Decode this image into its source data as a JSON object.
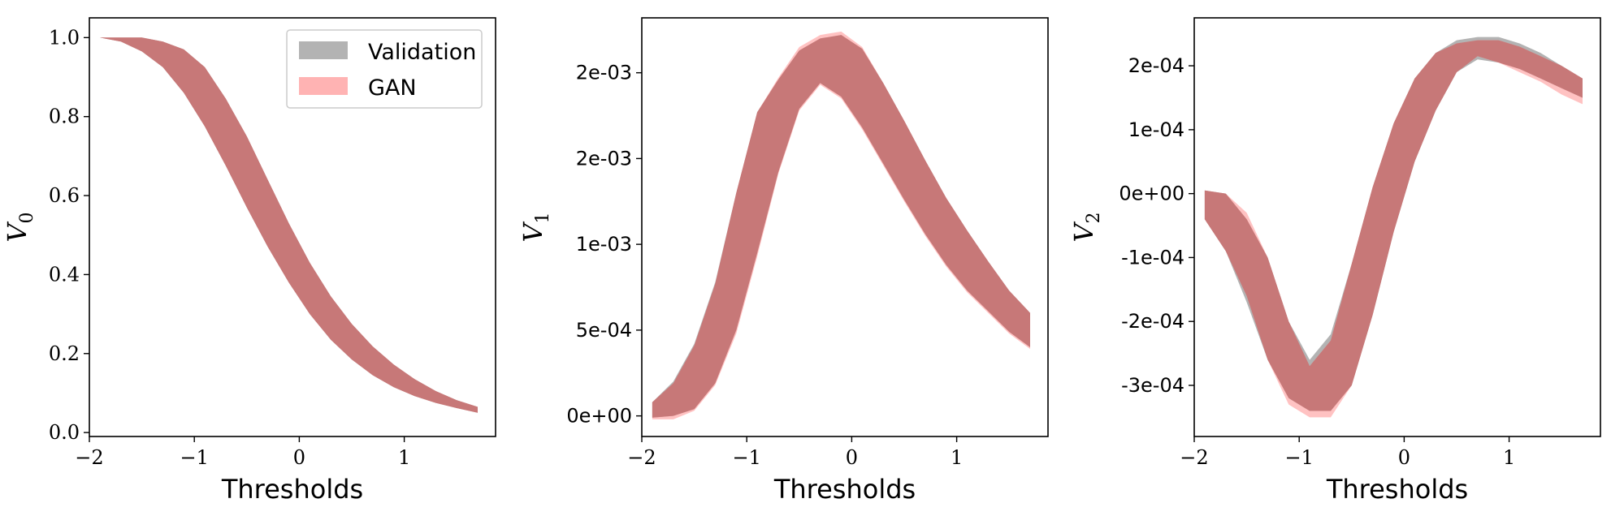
{
  "legend": {
    "entries": [
      {
        "label": "Validation",
        "color": "#8c8c8c"
      },
      {
        "label": "GAN",
        "color": "#ff8080"
      }
    ]
  },
  "colors": {
    "validation_fill": "#999999",
    "gan_fill": "#ff9999",
    "overlap_fill": "#c77878"
  },
  "chart_data": [
    {
      "type": "area",
      "xlabel": "Thresholds",
      "ylabel": "V",
      "ylabel_sub": "0",
      "xlim": [
        -2.0,
        1.87
      ],
      "ylim": [
        -0.01,
        1.05
      ],
      "xticks": [
        -2,
        -1,
        0,
        1
      ],
      "xtick_labels": [
        "−2",
        "−1",
        "0",
        "1"
      ],
      "yticks": [
        0.0,
        0.2,
        0.4,
        0.6,
        0.8,
        1.0
      ],
      "ytick_labels": [
        "0.0",
        "0.2",
        "0.4",
        "0.6",
        "0.8",
        "1.0"
      ],
      "legend_position": "upper right",
      "x": [
        -1.9,
        -1.7,
        -1.5,
        -1.3,
        -1.1,
        -0.9,
        -0.7,
        -0.5,
        -0.3,
        -0.1,
        0.1,
        0.3,
        0.5,
        0.7,
        0.9,
        1.1,
        1.3,
        1.5,
        1.7
      ],
      "series": [
        {
          "name": "Validation",
          "lower": [
            1.0,
            0.99,
            0.965,
            0.925,
            0.86,
            0.775,
            0.675,
            0.57,
            0.47,
            0.38,
            0.3,
            0.235,
            0.185,
            0.145,
            0.115,
            0.092,
            0.075,
            0.062,
            0.05
          ],
          "upper": [
            1.0,
            1.0,
            1.0,
            0.99,
            0.97,
            0.925,
            0.845,
            0.75,
            0.64,
            0.53,
            0.43,
            0.345,
            0.275,
            0.218,
            0.172,
            0.135,
            0.105,
            0.082,
            0.065
          ]
        },
        {
          "name": "GAN",
          "lower": [
            1.0,
            0.99,
            0.965,
            0.925,
            0.86,
            0.775,
            0.675,
            0.57,
            0.47,
            0.38,
            0.3,
            0.235,
            0.185,
            0.145,
            0.115,
            0.092,
            0.075,
            0.062,
            0.05
          ],
          "upper": [
            1.0,
            1.0,
            1.0,
            0.99,
            0.97,
            0.925,
            0.845,
            0.75,
            0.64,
            0.53,
            0.43,
            0.345,
            0.275,
            0.218,
            0.172,
            0.135,
            0.105,
            0.082,
            0.065
          ]
        }
      ]
    },
    {
      "type": "area",
      "xlabel": "Thresholds",
      "ylabel": "V",
      "ylabel_sub": "1",
      "xlim": [
        -2.0,
        1.87
      ],
      "ylim": [
        -0.00012,
        0.00232
      ],
      "xticks": [
        -2,
        -1,
        0,
        1
      ],
      "xtick_labels": [
        "−2",
        "−1",
        "0",
        "1"
      ],
      "yticks": [
        0.0,
        0.0005,
        0.001,
        0.0015,
        0.002
      ],
      "ytick_labels": [
        "0e+00",
        "5e-04",
        "1e-03",
        "2e-03",
        "2e-03"
      ],
      "x": [
        -1.9,
        -1.7,
        -1.5,
        -1.3,
        -1.1,
        -0.9,
        -0.7,
        -0.5,
        -0.3,
        -0.1,
        0.1,
        0.3,
        0.5,
        0.7,
        0.9,
        1.1,
        1.3,
        1.5,
        1.7
      ],
      "series": [
        {
          "name": "Validation",
          "lower": [
            -1e-05,
            0.0,
            4e-05,
            0.00019,
            0.0005,
            0.00095,
            0.00142,
            0.00179,
            0.00194,
            0.00186,
            0.00168,
            0.00147,
            0.00126,
            0.00106,
            0.00088,
            0.00073,
            0.00061,
            0.00049,
            0.0004
          ],
          "upper": [
            8e-05,
            0.0002,
            0.00042,
            0.00078,
            0.0013,
            0.00177,
            0.00196,
            0.00213,
            0.0022,
            0.00222,
            0.00214,
            0.00194,
            0.00172,
            0.00149,
            0.00127,
            0.00108,
            0.0009,
            0.00073,
            0.0006
          ]
        },
        {
          "name": "GAN",
          "lower": [
            -2e-05,
            -2e-05,
            3e-05,
            0.00018,
            0.00048,
            0.00093,
            0.00141,
            0.00178,
            0.00193,
            0.00185,
            0.00167,
            0.00146,
            0.00125,
            0.00105,
            0.00087,
            0.00072,
            0.0006,
            0.00048,
            0.00039
          ],
          "upper": [
            8e-05,
            0.00019,
            0.00041,
            0.00077,
            0.0013,
            0.00177,
            0.00197,
            0.00215,
            0.00222,
            0.00224,
            0.00215,
            0.00194,
            0.00172,
            0.00149,
            0.00127,
            0.00108,
            0.0009,
            0.00073,
            0.0006
          ]
        }
      ]
    },
    {
      "type": "area",
      "xlabel": "Thresholds",
      "ylabel": "V",
      "ylabel_sub": "2",
      "xlim": [
        -2.0,
        1.87
      ],
      "ylim": [
        -0.00038,
        0.000275
      ],
      "xticks": [
        -2,
        -1,
        0,
        1
      ],
      "xtick_labels": [
        "−2",
        "−1",
        "0",
        "1"
      ],
      "yticks": [
        -0.0003,
        -0.0002,
        -0.0001,
        0.0,
        0.0001,
        0.0002
      ],
      "ytick_labels": [
        "-3e-04",
        "-2e-04",
        "-1e-04",
        "0e+00",
        "1e-04",
        "2e-04"
      ],
      "x": [
        -1.9,
        -1.7,
        -1.5,
        -1.3,
        -1.1,
        -0.9,
        -0.7,
        -0.5,
        -0.3,
        -0.1,
        0.1,
        0.3,
        0.5,
        0.7,
        0.9,
        1.1,
        1.3,
        1.5,
        1.7
      ],
      "series": [
        {
          "name": "Validation",
          "lower": [
            -4e-05,
            -9e-05,
            -0.00017,
            -0.00026,
            -0.00032,
            -0.00034,
            -0.00034,
            -0.0003,
            -0.00019,
            -6e-05,
            5e-05,
            0.00013,
            0.00019,
            0.00021,
            0.000205,
            0.000195,
            0.00018,
            0.000165,
            0.00015
          ],
          "upper": [
            5e-06,
            0.0,
            -4e-05,
            -0.0001,
            -0.0002,
            -0.00026,
            -0.00022,
            -0.00011,
            1e-05,
            0.00011,
            0.00018,
            0.00022,
            0.00024,
            0.000245,
            0.000245,
            0.000235,
            0.00022,
            0.0002,
            0.00018
          ]
        },
        {
          "name": "GAN",
          "lower": [
            -4e-05,
            -9e-05,
            -0.00016,
            -0.00026,
            -0.00033,
            -0.00035,
            -0.00035,
            -0.0003,
            -0.00019,
            -6e-05,
            5e-05,
            0.00013,
            0.00019,
            0.000215,
            0.000205,
            0.00019,
            0.000175,
            0.000155,
            0.00014
          ],
          "upper": [
            5e-06,
            0.0,
            -3e-05,
            -0.0001,
            -0.0002,
            -0.00027,
            -0.00023,
            -0.00011,
            1e-05,
            0.00011,
            0.00018,
            0.00022,
            0.000235,
            0.00024,
            0.00024,
            0.00023,
            0.000215,
            0.0002,
            0.00018
          ]
        }
      ]
    }
  ]
}
